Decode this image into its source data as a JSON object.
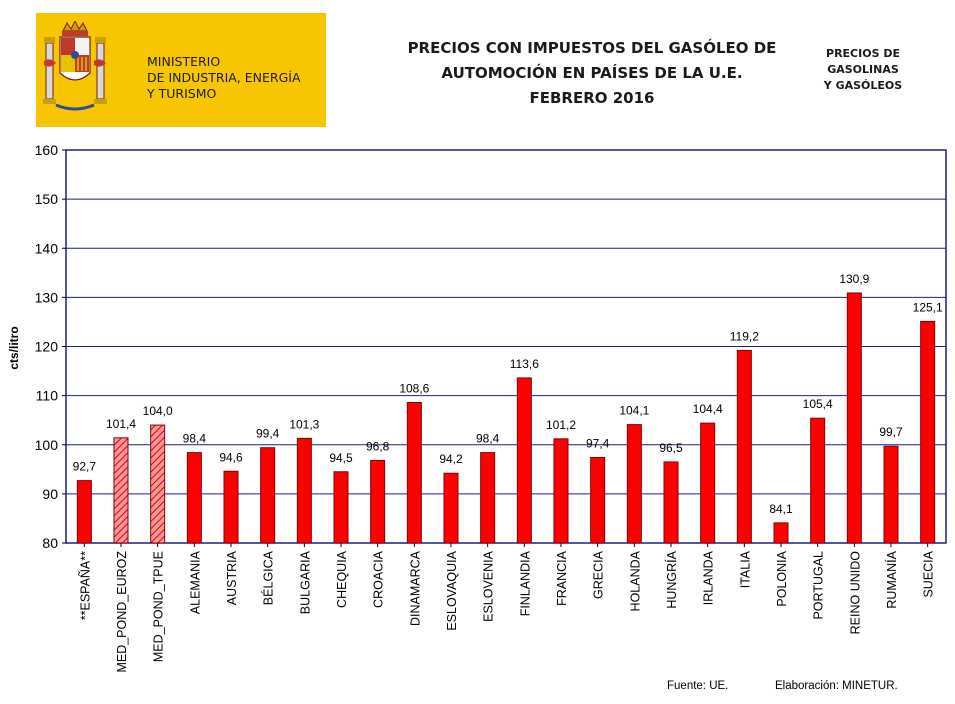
{
  "header": {
    "ministry_lines": [
      "MINISTERIO",
      "DE INDUSTRIA, ENERGÍA",
      "Y TURISMO"
    ],
    "title_lines": [
      "PRECIOS CON IMPUESTOS DEL GASÓLEO DE",
      "AUTOMOCIÓN EN PAÍSES DE LA U.E.",
      "FEBRERO 2016"
    ],
    "side_title_lines": [
      "PRECIOS DE",
      "GASOLINAS",
      "Y GASÓLEOS"
    ],
    "logo_color": "#f7c600"
  },
  "footer": {
    "source": "Fuente: UE.",
    "credit": "Elaboración: MINETUR."
  },
  "colors": {
    "bar_fill": "#ff0000",
    "bar_stroke": "#800000",
    "hatched_fill": "#ff9999",
    "grid": "#1c1c8c",
    "axis": "#1c1c8c"
  },
  "chart_data": {
    "type": "bar",
    "title": "PRECIOS CON IMPUESTOS DEL GASÓLEO DE AUTOMOCIÓN EN PAÍSES DE LA U.E. FEBRERO 2016",
    "xlabel": "",
    "ylabel": "cts/litro",
    "ylim": [
      80,
      160
    ],
    "yticks": [
      80,
      90,
      100,
      110,
      120,
      130,
      140,
      150,
      160
    ],
    "grid": true,
    "categories": [
      "**ESPAÑA**",
      "MED_POND_EUROZ",
      "MED_POND_TPUE",
      "ALEMANIA",
      "AUSTRIA",
      "BÉLGICA",
      "BULGARIA",
      "CHEQUIA",
      "CROACIA",
      "DINAMARCA",
      "ESLOVAQUIA",
      "ESLOVENIA",
      "FINLANDIA",
      "FRANCIA",
      "GRECIA",
      "HOLANDA",
      "HUNGRÍA",
      "IRLANDA",
      "ITALIA",
      "POLONIA",
      "PORTUGAL",
      "REINO UNIDO",
      "RUMANÍA",
      "SUECIA"
    ],
    "values": [
      92.7,
      101.4,
      104.0,
      98.4,
      94.6,
      99.4,
      101.3,
      94.5,
      96.8,
      108.6,
      94.2,
      98.4,
      113.6,
      101.2,
      97.4,
      104.1,
      96.5,
      104.4,
      119.2,
      84.1,
      105.4,
      130.9,
      99.7,
      125.1
    ],
    "value_labels": [
      "92,7",
      "101,4",
      "104,0",
      "98,4",
      "94,6",
      "99,4",
      "101,3",
      "94,5",
      "96,8",
      "108,6",
      "94,2",
      "98,4",
      "113,6",
      "101,2",
      "97,4",
      "104,1",
      "96,5",
      "104,4",
      "119,2",
      "84,1",
      "105,4",
      "130,9",
      "99,7",
      "125,1"
    ],
    "hatched": [
      false,
      true,
      true,
      false,
      false,
      false,
      false,
      false,
      false,
      false,
      false,
      false,
      false,
      false,
      false,
      false,
      false,
      false,
      false,
      false,
      false,
      false,
      false,
      false
    ]
  }
}
